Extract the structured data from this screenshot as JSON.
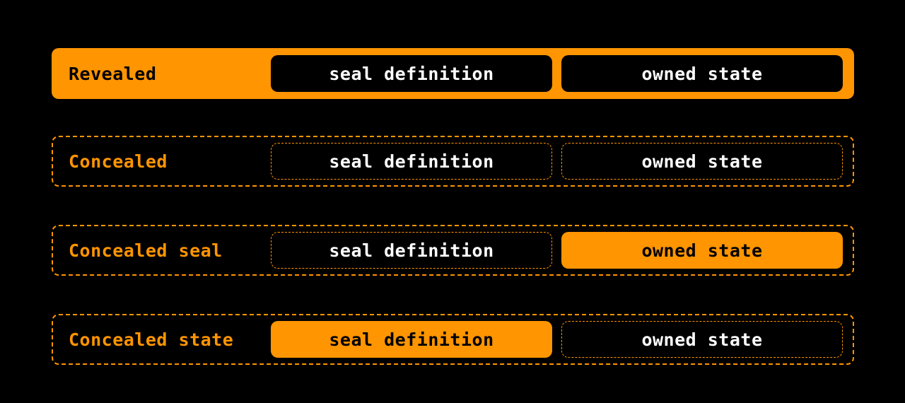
{
  "colors": {
    "accent": "#ff9500",
    "background": "#000000",
    "text_light": "#ffffff"
  },
  "rows": [
    {
      "label": "Revealed",
      "seal": "seal definition",
      "state": "owned state"
    },
    {
      "label": "Concealed",
      "seal": "seal definition",
      "state": "owned state"
    },
    {
      "label": "Concealed seal",
      "seal": "seal definition",
      "state": "owned state"
    },
    {
      "label": "Concealed state",
      "seal": "seal definition",
      "state": "owned state"
    }
  ]
}
